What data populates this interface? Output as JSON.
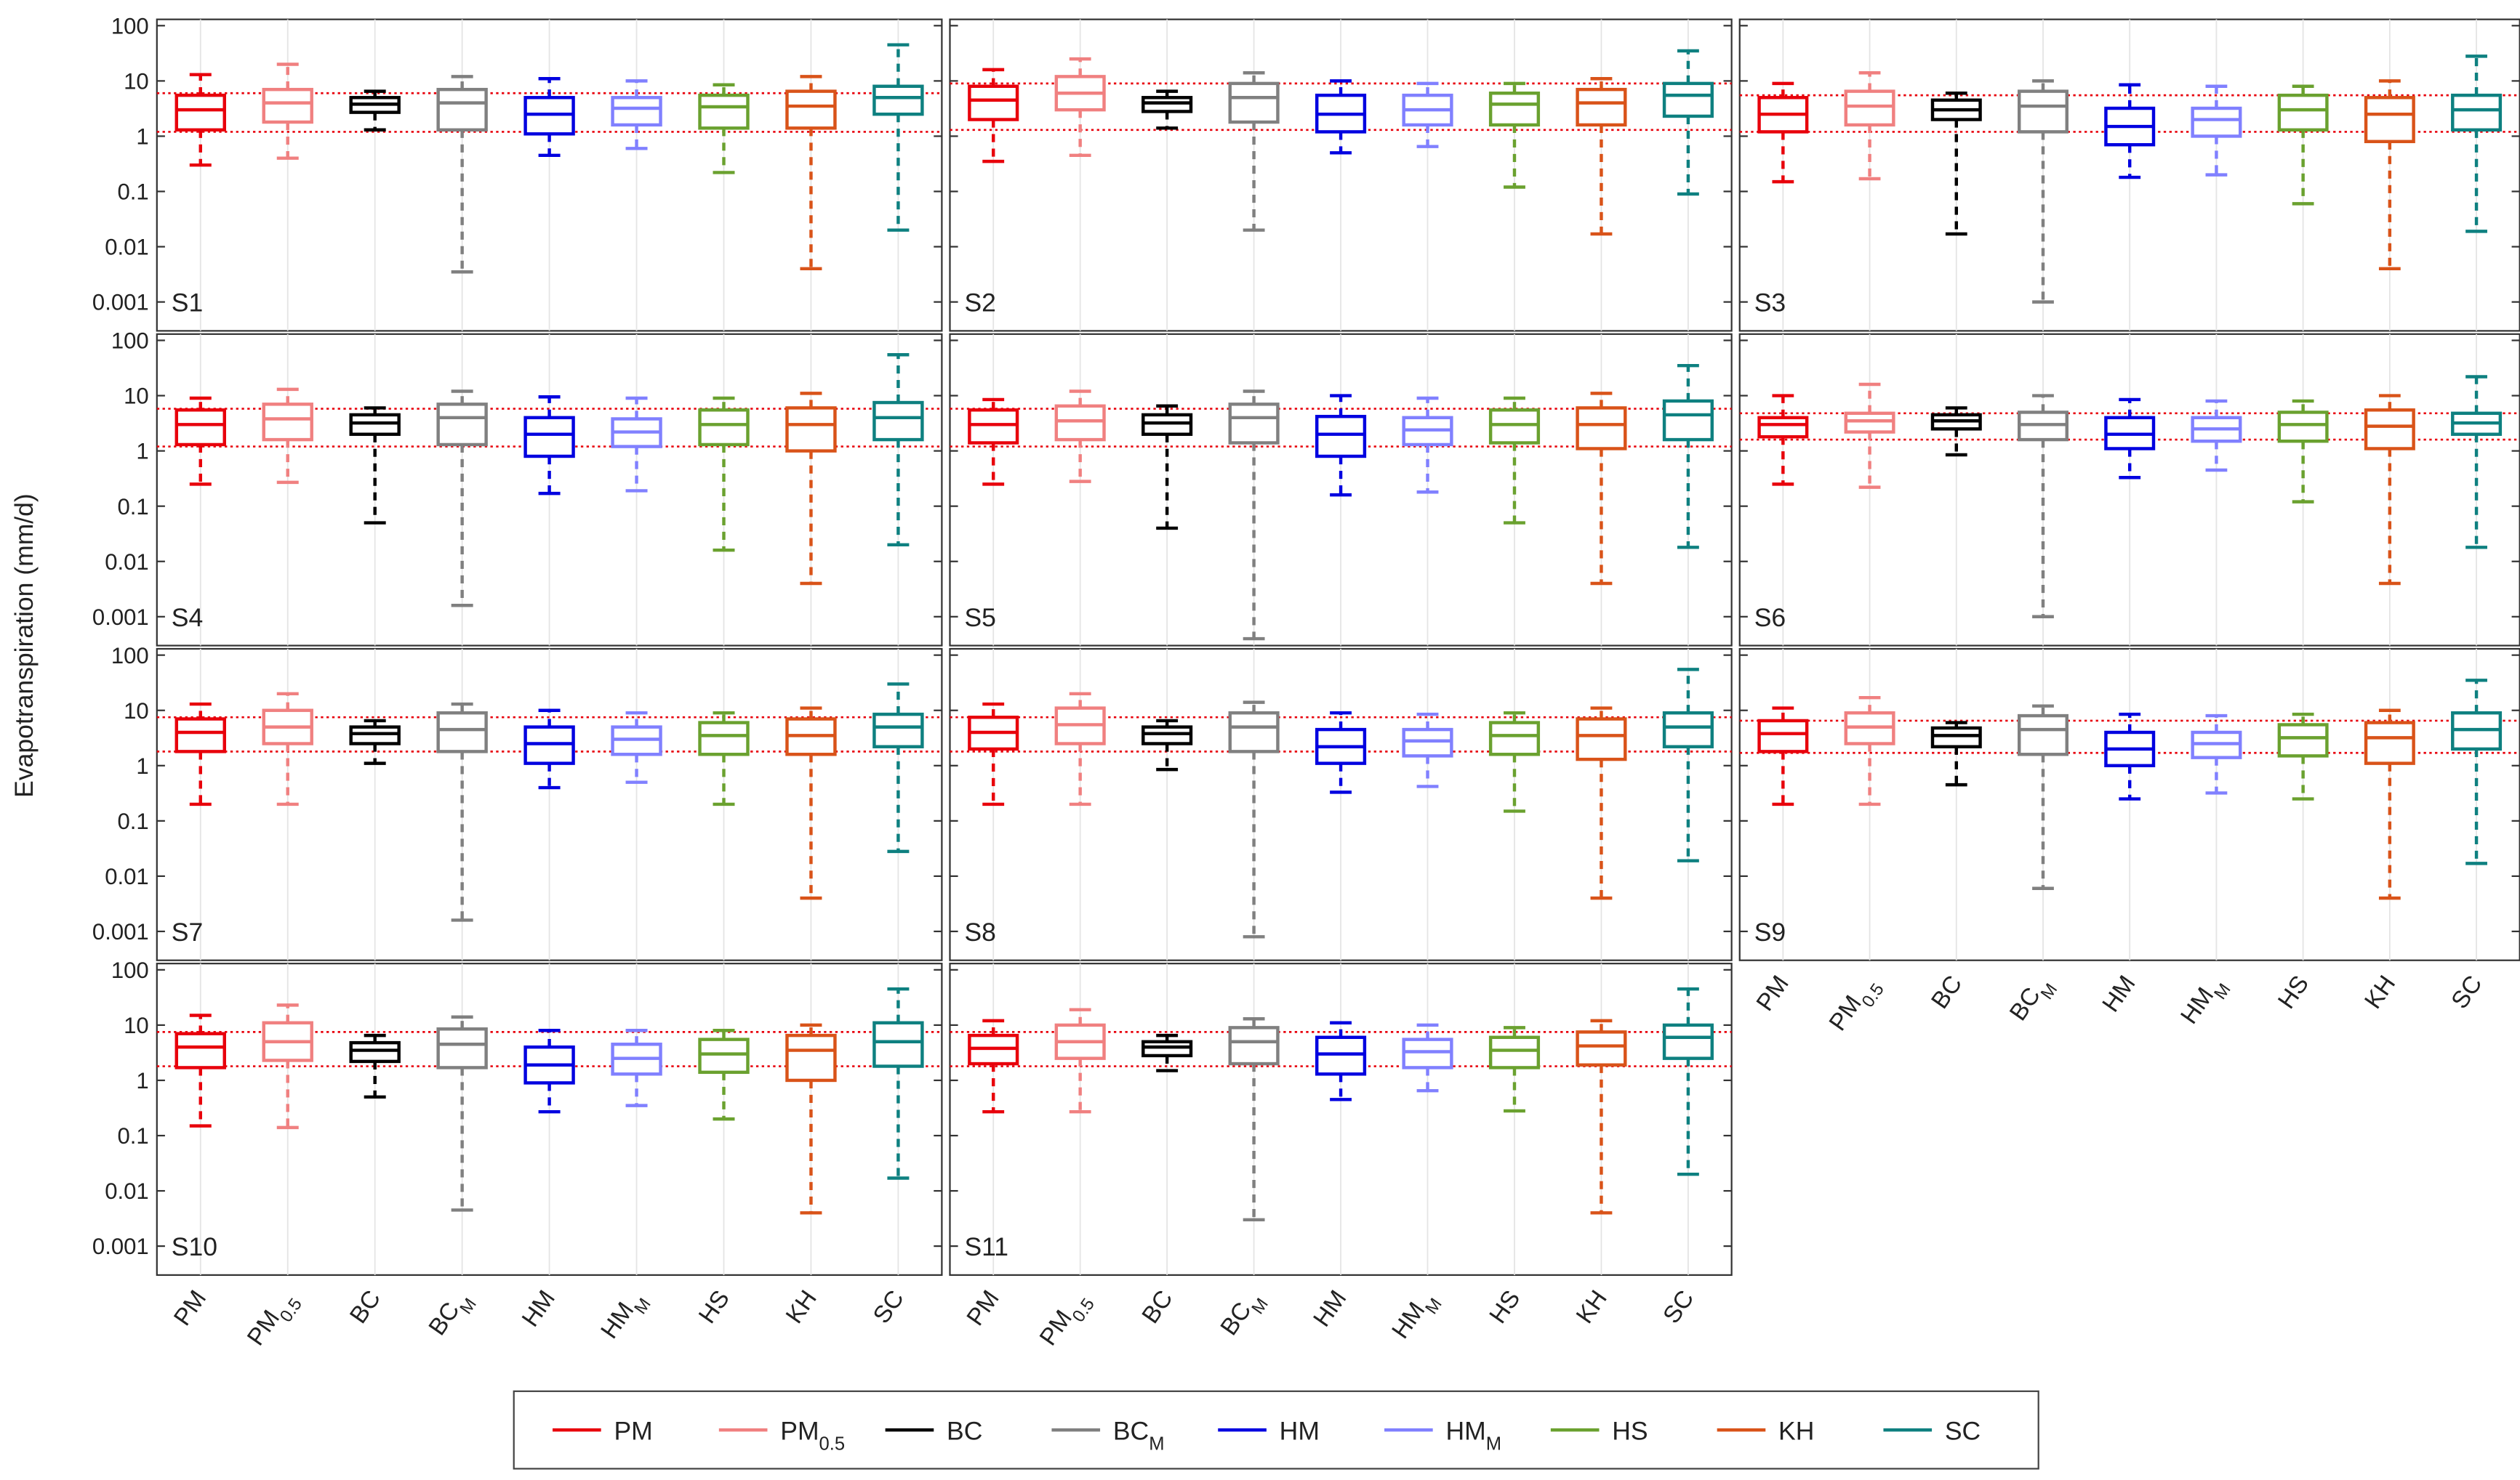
{
  "chart_data": {
    "type": "box",
    "log": true,
    "ylabel": "Evapotranspiration (mm/d)",
    "ylim": [
      0.0003,
      130
    ],
    "yticks": [
      0.001,
      0.01,
      0.1,
      1,
      10,
      100
    ],
    "categories": [
      "PM",
      {
        "text": "PM",
        "sub": "0.5"
      },
      "BC",
      {
        "text": "BC",
        "sub": "M"
      },
      "HM",
      {
        "text": "HM",
        "sub": "M"
      },
      "HS",
      "KH",
      "SC"
    ],
    "colors": [
      "#e8000b",
      "#f08080",
      "#000000",
      "#808080",
      "#0000e0",
      "#8080ff",
      "#6aa12f",
      "#d95319",
      "#0e8080"
    ],
    "ref_color": "#e8000b",
    "panels": [
      {
        "label": "S1",
        "ref_lines": [
          1.2,
          6
        ],
        "boxes": [
          {
            "min": 0.3,
            "q1": 1.3,
            "median": 3,
            "q3": 5.5,
            "max": 13
          },
          {
            "min": 0.4,
            "q1": 1.8,
            "median": 4,
            "q3": 7,
            "max": 20
          },
          {
            "min": 1.3,
            "q1": 2.7,
            "median": 3.8,
            "q3": 5,
            "max": 6.5
          },
          {
            "min": 0.0035,
            "q1": 1.3,
            "median": 4,
            "q3": 7,
            "max": 12
          },
          {
            "min": 0.45,
            "q1": 1.1,
            "median": 2.5,
            "q3": 5,
            "max": 11
          },
          {
            "min": 0.6,
            "q1": 1.6,
            "median": 3.2,
            "q3": 5,
            "max": 10
          },
          {
            "min": 0.22,
            "q1": 1.4,
            "median": 3.4,
            "q3": 5.5,
            "max": 8.5
          },
          {
            "min": 0.004,
            "q1": 1.4,
            "median": 3.5,
            "q3": 6.5,
            "max": 12
          },
          {
            "min": 0.02,
            "q1": 2.5,
            "median": 5,
            "q3": 8,
            "max": 45
          }
        ]
      },
      {
        "label": "S2",
        "ref_lines": [
          1.3,
          9
        ],
        "boxes": [
          {
            "min": 0.35,
            "q1": 2,
            "median": 4.5,
            "q3": 8,
            "max": 16
          },
          {
            "min": 0.45,
            "q1": 3,
            "median": 6,
            "q3": 12,
            "max": 25
          },
          {
            "min": 1.4,
            "q1": 2.8,
            "median": 4,
            "q3": 5,
            "max": 6.5
          },
          {
            "min": 0.02,
            "q1": 1.8,
            "median": 5,
            "q3": 9,
            "max": 14
          },
          {
            "min": 0.5,
            "q1": 1.2,
            "median": 2.5,
            "q3": 5.5,
            "max": 10
          },
          {
            "min": 0.65,
            "q1": 1.6,
            "median": 3,
            "q3": 5.5,
            "max": 9
          },
          {
            "min": 0.12,
            "q1": 1.6,
            "median": 3.8,
            "q3": 6,
            "max": 9
          },
          {
            "min": 0.017,
            "q1": 1.6,
            "median": 4,
            "q3": 7,
            "max": 11
          },
          {
            "min": 0.09,
            "q1": 2.3,
            "median": 5.5,
            "q3": 9,
            "max": 35
          }
        ]
      },
      {
        "label": "S3",
        "ref_lines": [
          1.2,
          5.5
        ],
        "boxes": [
          {
            "min": 0.15,
            "q1": 1.2,
            "median": 2.5,
            "q3": 5,
            "max": 9
          },
          {
            "min": 0.17,
            "q1": 1.6,
            "median": 3.5,
            "q3": 6.5,
            "max": 14
          },
          {
            "min": 0.017,
            "q1": 2,
            "median": 3,
            "q3": 4.5,
            "max": 6
          },
          {
            "min": 0.001,
            "q1": 1.2,
            "median": 3.5,
            "q3": 6.5,
            "max": 10
          },
          {
            "min": 0.18,
            "q1": 0.7,
            "median": 1.5,
            "q3": 3.2,
            "max": 8.5
          },
          {
            "min": 0.2,
            "q1": 1,
            "median": 2,
            "q3": 3.2,
            "max": 8
          },
          {
            "min": 0.06,
            "q1": 1.3,
            "median": 3,
            "q3": 5.5,
            "max": 8
          },
          {
            "min": 0.004,
            "q1": 0.8,
            "median": 2.5,
            "q3": 5,
            "max": 10
          },
          {
            "min": 0.019,
            "q1": 1.3,
            "median": 3,
            "q3": 5.5,
            "max": 28
          }
        ]
      },
      {
        "label": "S4",
        "ref_lines": [
          1.2,
          5.8
        ],
        "boxes": [
          {
            "min": 0.25,
            "q1": 1.3,
            "median": 3,
            "q3": 5.5,
            "max": 9
          },
          {
            "min": 0.27,
            "q1": 1.6,
            "median": 3.8,
            "q3": 7,
            "max": 13
          },
          {
            "min": 0.05,
            "q1": 2,
            "median": 3.2,
            "q3": 4.5,
            "max": 6
          },
          {
            "min": 0.0016,
            "q1": 1.3,
            "median": 4,
            "q3": 7,
            "max": 12
          },
          {
            "min": 0.17,
            "q1": 0.8,
            "median": 2,
            "q3": 4,
            "max": 9.5
          },
          {
            "min": 0.19,
            "q1": 1.2,
            "median": 2.2,
            "q3": 3.8,
            "max": 9
          },
          {
            "min": 0.016,
            "q1": 1.3,
            "median": 3,
            "q3": 5.5,
            "max": 9
          },
          {
            "min": 0.004,
            "q1": 1,
            "median": 3,
            "q3": 6,
            "max": 11
          },
          {
            "min": 0.02,
            "q1": 1.6,
            "median": 4,
            "q3": 7.5,
            "max": 55
          }
        ]
      },
      {
        "label": "S5",
        "ref_lines": [
          1.2,
          5.8
        ],
        "boxes": [
          {
            "min": 0.25,
            "q1": 1.4,
            "median": 3,
            "q3": 5.5,
            "max": 8.5
          },
          {
            "min": 0.28,
            "q1": 1.6,
            "median": 3.5,
            "q3": 6.5,
            "max": 12
          },
          {
            "min": 0.04,
            "q1": 2,
            "median": 3.2,
            "q3": 4.5,
            "max": 6.5
          },
          {
            "min": 0.0004,
            "q1": 1.4,
            "median": 4,
            "q3": 7,
            "max": 12
          },
          {
            "min": 0.16,
            "q1": 0.8,
            "median": 2,
            "q3": 4.2,
            "max": 10
          },
          {
            "min": 0.18,
            "q1": 1.3,
            "median": 2.4,
            "q3": 4,
            "max": 9
          },
          {
            "min": 0.05,
            "q1": 1.4,
            "median": 3,
            "q3": 5.5,
            "max": 9
          },
          {
            "min": 0.004,
            "q1": 1.1,
            "median": 3,
            "q3": 6,
            "max": 11
          },
          {
            "min": 0.018,
            "q1": 1.6,
            "median": 4.5,
            "q3": 8,
            "max": 35
          }
        ]
      },
      {
        "label": "S6",
        "ref_lines": [
          1.6,
          4.8
        ],
        "boxes": [
          {
            "min": 0.25,
            "q1": 1.8,
            "median": 3,
            "q3": 4,
            "max": 10
          },
          {
            "min": 0.22,
            "q1": 2.2,
            "median": 3.5,
            "q3": 4.8,
            "max": 16
          },
          {
            "min": 0.85,
            "q1": 2.5,
            "median": 3.5,
            "q3": 4.5,
            "max": 6
          },
          {
            "min": 0.001,
            "q1": 1.6,
            "median": 3,
            "q3": 5,
            "max": 10
          },
          {
            "min": 0.33,
            "q1": 1.1,
            "median": 2,
            "q3": 4,
            "max": 8.5
          },
          {
            "min": 0.45,
            "q1": 1.5,
            "median": 2.5,
            "q3": 4,
            "max": 8
          },
          {
            "min": 0.12,
            "q1": 1.5,
            "median": 3,
            "q3": 5,
            "max": 8
          },
          {
            "min": 0.004,
            "q1": 1.1,
            "median": 2.8,
            "q3": 5.5,
            "max": 10
          },
          {
            "min": 0.018,
            "q1": 2,
            "median": 3.2,
            "q3": 4.8,
            "max": 22
          }
        ]
      },
      {
        "label": "S7",
        "ref_lines": [
          1.8,
          7.5
        ],
        "boxes": [
          {
            "min": 0.2,
            "q1": 1.8,
            "median": 4,
            "q3": 7,
            "max": 13
          },
          {
            "min": 0.2,
            "q1": 2.5,
            "median": 5,
            "q3": 10,
            "max": 20
          },
          {
            "min": 1.1,
            "q1": 2.5,
            "median": 3.8,
            "q3": 5,
            "max": 6.5
          },
          {
            "min": 0.0016,
            "q1": 1.8,
            "median": 4.5,
            "q3": 9,
            "max": 13
          },
          {
            "min": 0.4,
            "q1": 1.1,
            "median": 2.5,
            "q3": 5,
            "max": 10
          },
          {
            "min": 0.5,
            "q1": 1.6,
            "median": 3,
            "q3": 5,
            "max": 9
          },
          {
            "min": 0.2,
            "q1": 1.6,
            "median": 3.5,
            "q3": 6,
            "max": 9
          },
          {
            "min": 0.004,
            "q1": 1.6,
            "median": 3.5,
            "q3": 7,
            "max": 11
          },
          {
            "min": 0.028,
            "q1": 2.2,
            "median": 5,
            "q3": 8.5,
            "max": 30
          }
        ]
      },
      {
        "label": "S8",
        "ref_lines": [
          1.8,
          7.5
        ],
        "boxes": [
          {
            "min": 0.2,
            "q1": 2,
            "median": 4,
            "q3": 7.5,
            "max": 13
          },
          {
            "min": 0.2,
            "q1": 2.5,
            "median": 5.5,
            "q3": 11,
            "max": 20
          },
          {
            "min": 0.85,
            "q1": 2.5,
            "median": 3.8,
            "q3": 5,
            "max": 6.5
          },
          {
            "min": 0.0008,
            "q1": 1.8,
            "median": 5,
            "q3": 9,
            "max": 14
          },
          {
            "min": 0.33,
            "q1": 1.1,
            "median": 2.2,
            "q3": 4.5,
            "max": 9
          },
          {
            "min": 0.42,
            "q1": 1.5,
            "median": 2.8,
            "q3": 4.5,
            "max": 8.5
          },
          {
            "min": 0.15,
            "q1": 1.6,
            "median": 3.5,
            "q3": 6,
            "max": 9
          },
          {
            "min": 0.004,
            "q1": 1.3,
            "median": 3.5,
            "q3": 7,
            "max": 11
          },
          {
            "min": 0.019,
            "q1": 2.2,
            "median": 5,
            "q3": 9,
            "max": 55
          }
        ]
      },
      {
        "label": "S9",
        "ref_lines": [
          1.7,
          6.5
        ],
        "boxes": [
          {
            "min": 0.2,
            "q1": 1.8,
            "median": 3.8,
            "q3": 6.5,
            "max": 11
          },
          {
            "min": 0.2,
            "q1": 2.5,
            "median": 5,
            "q3": 9,
            "max": 17
          },
          {
            "min": 0.45,
            "q1": 2.2,
            "median": 3.5,
            "q3": 4.8,
            "max": 6
          },
          {
            "min": 0.006,
            "q1": 1.6,
            "median": 4.5,
            "q3": 8,
            "max": 12
          },
          {
            "min": 0.25,
            "q1": 1,
            "median": 2,
            "q3": 4,
            "max": 8.5
          },
          {
            "min": 0.32,
            "q1": 1.4,
            "median": 2.5,
            "q3": 4,
            "max": 8
          },
          {
            "min": 0.25,
            "q1": 1.5,
            "median": 3.2,
            "q3": 5.5,
            "max": 8.5
          },
          {
            "min": 0.004,
            "q1": 1.1,
            "median": 3.2,
            "q3": 6,
            "max": 10
          },
          {
            "min": 0.017,
            "q1": 2,
            "median": 4.5,
            "q3": 9,
            "max": 35
          }
        ]
      },
      {
        "label": "S10",
        "ref_lines": [
          1.8,
          7.5
        ],
        "boxes": [
          {
            "min": 0.15,
            "q1": 1.7,
            "median": 4,
            "q3": 7,
            "max": 15
          },
          {
            "min": 0.14,
            "q1": 2.3,
            "median": 5,
            "q3": 11,
            "max": 23
          },
          {
            "min": 0.5,
            "q1": 2.2,
            "median": 3.5,
            "q3": 4.8,
            "max": 6.5
          },
          {
            "min": 0.0045,
            "q1": 1.7,
            "median": 4.5,
            "q3": 8.5,
            "max": 14
          },
          {
            "min": 0.27,
            "q1": 0.9,
            "median": 1.9,
            "q3": 4,
            "max": 8
          },
          {
            "min": 0.35,
            "q1": 1.3,
            "median": 2.5,
            "q3": 4.5,
            "max": 8
          },
          {
            "min": 0.2,
            "q1": 1.4,
            "median": 3,
            "q3": 5.5,
            "max": 8
          },
          {
            "min": 0.004,
            "q1": 1,
            "median": 3.5,
            "q3": 6.5,
            "max": 10
          },
          {
            "min": 0.017,
            "q1": 1.8,
            "median": 5,
            "q3": 11,
            "max": 45
          }
        ]
      },
      {
        "label": "S11",
        "ref_lines": [
          1.8,
          7.5
        ],
        "boxes": [
          {
            "min": 0.27,
            "q1": 2,
            "median": 3.8,
            "q3": 6.5,
            "max": 12
          },
          {
            "min": 0.27,
            "q1": 2.5,
            "median": 5,
            "q3": 10,
            "max": 19
          },
          {
            "min": 1.5,
            "q1": 2.8,
            "median": 4,
            "q3": 5,
            "max": 6.5
          },
          {
            "min": 0.003,
            "q1": 2,
            "median": 5,
            "q3": 9,
            "max": 13
          },
          {
            "min": 0.45,
            "q1": 1.3,
            "median": 3,
            "q3": 6,
            "max": 11
          },
          {
            "min": 0.65,
            "q1": 1.7,
            "median": 3.3,
            "q3": 5.5,
            "max": 10
          },
          {
            "min": 0.28,
            "q1": 1.7,
            "median": 3.5,
            "q3": 6,
            "max": 9
          },
          {
            "min": 0.004,
            "q1": 1.9,
            "median": 4.2,
            "q3": 7.5,
            "max": 12
          },
          {
            "min": 0.02,
            "q1": 2.5,
            "median": 6,
            "q3": 10,
            "max": 45
          }
        ]
      }
    ]
  }
}
